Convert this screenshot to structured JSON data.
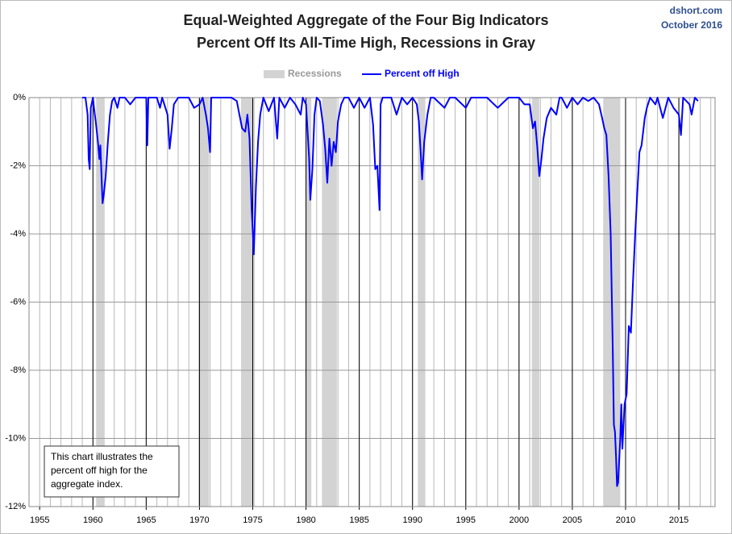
{
  "chart_data": {
    "type": "line",
    "title": "Equal-Weighted Aggregate of the Four Big Indicators",
    "subtitle": "Percent Off Its All-Time High, Recessions in Gray",
    "source": "dshort.com",
    "date": "October 2016",
    "annotation": [
      "This chart illustrates the",
      "percent off high for the",
      "aggregate index."
    ],
    "xlim": [
      1954,
      2018.4
    ],
    "xticks": [
      1955,
      1960,
      1965,
      1970,
      1975,
      1980,
      1985,
      1990,
      1995,
      2000,
      2005,
      2010,
      2015
    ],
    "ylim": [
      -12,
      0
    ],
    "yticks": [
      {
        "value": 0,
        "label": "0%"
      },
      {
        "value": -2,
        "label": "-2%"
      },
      {
        "value": -4,
        "label": "-4%"
      },
      {
        "value": -6,
        "label": "-6%"
      },
      {
        "value": -8,
        "label": "-8%"
      },
      {
        "value": -10,
        "label": "-10%"
      },
      {
        "value": -12,
        "label": "-12%"
      }
    ],
    "grid": true,
    "recessions": {
      "name": "Recessions",
      "color": "#d3d3d3",
      "ranges": [
        [
          1960.3,
          1961.1
        ],
        [
          1969.9,
          1970.9
        ],
        [
          1973.9,
          1975.2
        ],
        [
          1980.0,
          1980.5
        ],
        [
          1981.5,
          1982.9
        ],
        [
          1990.5,
          1991.2
        ],
        [
          2001.2,
          2001.9
        ],
        [
          2007.9,
          2009.5
        ]
      ]
    },
    "x": [
      1959.0,
      1959.3,
      1959.5,
      1959.6,
      1959.7,
      1959.8,
      1960.0,
      1960.1,
      1960.3,
      1960.5,
      1960.6,
      1960.7,
      1960.9,
      1961.0,
      1961.2,
      1961.4,
      1961.6,
      1961.8,
      1962.0,
      1962.3,
      1962.5,
      1963.0,
      1963.5,
      1964.0,
      1965.0,
      1965.1,
      1965.2,
      1966.0,
      1966.3,
      1966.5,
      1967.0,
      1967.2,
      1967.4,
      1967.6,
      1968.0,
      1969.0,
      1969.5,
      1970.0,
      1970.3,
      1970.6,
      1970.8,
      1971.0,
      1971.1,
      1972.0,
      1973.0,
      1973.5,
      1974.0,
      1974.3,
      1974.5,
      1974.7,
      1974.9,
      1975.0,
      1975.1,
      1975.3,
      1975.5,
      1975.7,
      1976.0,
      1976.5,
      1977.0,
      1977.3,
      1977.5,
      1978.0,
      1978.5,
      1979.0,
      1979.5,
      1979.7,
      1980.0,
      1980.3,
      1980.4,
      1980.6,
      1980.8,
      1981.0,
      1981.3,
      1981.6,
      1981.8,
      1982.0,
      1982.2,
      1982.4,
      1982.6,
      1982.8,
      1983.0,
      1983.3,
      1983.6,
      1984.0,
      1984.5,
      1985.0,
      1985.5,
      1986.0,
      1986.3,
      1986.5,
      1986.7,
      1986.9,
      1987.0,
      1987.2,
      1988.0,
      1988.5,
      1989.0,
      1989.5,
      1990.0,
      1990.4,
      1990.6,
      1990.8,
      1990.9,
      1991.1,
      1991.4,
      1991.7,
      1992.0,
      1993.0,
      1993.5,
      1994.0,
      1995.0,
      1995.5,
      1996.0,
      1997.0,
      1998.0,
      1999.0,
      2000.0,
      2000.5,
      2001.0,
      2001.3,
      2001.5,
      2001.7,
      2001.9,
      2002.1,
      2002.3,
      2002.6,
      2003.0,
      2003.5,
      2003.8,
      2004.0,
      2004.5,
      2005.0,
      2005.5,
      2006.0,
      2006.5,
      2007.0,
      2007.5,
      2007.8,
      2008.0,
      2008.2,
      2008.4,
      2008.6,
      2008.8,
      2008.9,
      2009.0,
      2009.1,
      2009.2,
      2009.3,
      2009.5,
      2009.6,
      2009.7,
      2009.9,
      2010.1,
      2010.3,
      2010.5,
      2010.7,
      2010.9,
      2011.1,
      2011.3,
      2011.5,
      2011.8,
      2012.0,
      2012.3,
      2012.8,
      2013.0,
      2013.5,
      2014.0,
      2014.5,
      2015.0,
      2015.2,
      2015.4,
      2016.0,
      2016.2,
      2016.5,
      2016.8
    ],
    "series": [
      {
        "name": "Percent off High",
        "color": "#0000ff",
        "values": [
          0,
          0,
          -0.5,
          -1.8,
          -2.1,
          -0.3,
          0,
          -0.3,
          -0.8,
          -1.4,
          -1.8,
          -1.4,
          -3.1,
          -2.9,
          -2.3,
          -1.3,
          -0.5,
          -0.1,
          0,
          -0.3,
          0,
          0,
          -0.2,
          0,
          0,
          -1.4,
          0,
          0,
          -0.3,
          0,
          -0.5,
          -1.5,
          -0.9,
          -0.2,
          0,
          0,
          -0.3,
          -0.2,
          0,
          -0.5,
          -0.9,
          -1.6,
          0,
          0,
          0,
          -0.1,
          -0.9,
          -1.0,
          -0.5,
          -1.2,
          -3.3,
          -3.9,
          -4.6,
          -2.6,
          -1.3,
          -0.5,
          0,
          -0.4,
          0,
          -1.2,
          0,
          -0.3,
          0,
          -0.2,
          -0.5,
          0,
          -0.2,
          -1.8,
          -3.0,
          -2.1,
          -0.5,
          0,
          -0.1,
          -0.8,
          -1.5,
          -2.5,
          -1.2,
          -2.0,
          -1.3,
          -1.6,
          -0.7,
          -0.2,
          0,
          0,
          -0.3,
          0,
          -0.3,
          0,
          -0.8,
          -2.1,
          -2.0,
          -3.3,
          -0.2,
          0,
          0,
          -0.5,
          0,
          -0.2,
          0,
          -0.2,
          -0.7,
          -1.8,
          -2.4,
          -1.3,
          -0.5,
          0,
          0,
          -0.3,
          0,
          0,
          -0.3,
          0,
          0,
          0,
          -0.3,
          0,
          0,
          -0.2,
          -0.2,
          -0.9,
          -0.7,
          -1.4,
          -2.3,
          -1.8,
          -1.2,
          -0.6,
          -0.3,
          -0.5,
          0,
          0,
          -0.3,
          0,
          -0.2,
          0,
          -0.1,
          0,
          -0.2,
          -0.6,
          -0.9,
          -1.1,
          -2.3,
          -4.0,
          -7.4,
          -9.6,
          -9.8,
          -10.5,
          -11.4,
          -11.3,
          -10.0,
          -9.0,
          -10.3,
          -9.0,
          -8.7,
          -6.7,
          -6.9,
          -5.4,
          -4.0,
          -2.8,
          -1.6,
          -1.4,
          -0.6,
          -0.3,
          0,
          -0.2,
          0,
          -0.6,
          0,
          -0.3,
          -0.5,
          -1.1,
          0,
          -0.2,
          -0.5,
          0,
          -0.1
        ]
      }
    ]
  }
}
